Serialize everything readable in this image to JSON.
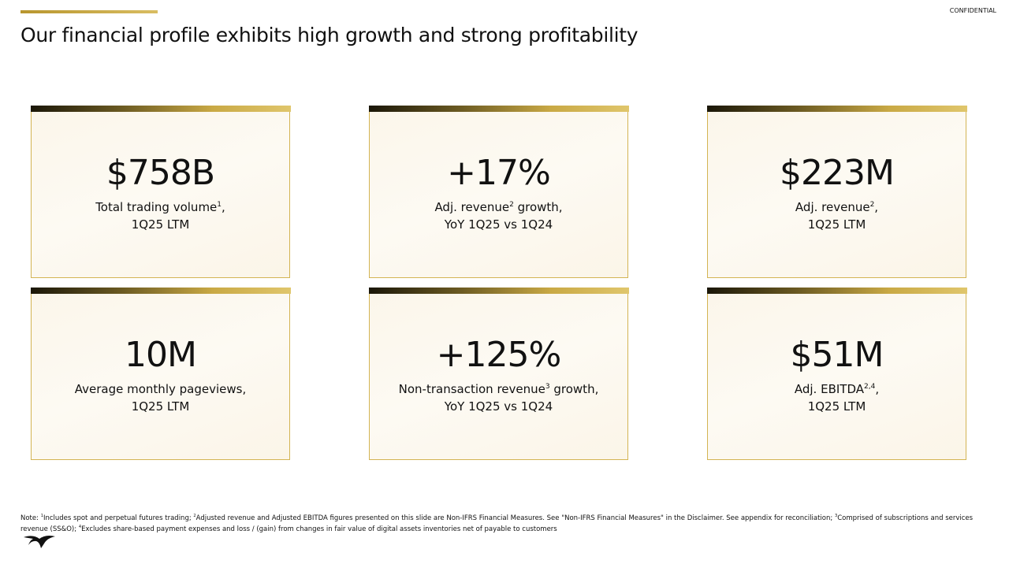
{
  "header": {
    "title": "Our financial profile exhibits high growth and strong profitability",
    "confidential": "CONFIDENTIAL"
  },
  "cards": [
    {
      "value": "$758B",
      "lines": [
        {
          "text": "Total trading volume",
          "sup": "1",
          "after": ","
        },
        {
          "text": "1Q25 LTM"
        }
      ]
    },
    {
      "value": "+17%",
      "lines": [
        {
          "text": "Adj. revenue",
          "sup": "2",
          "after": " growth,"
        },
        {
          "text": "YoY 1Q25 vs 1Q24"
        }
      ]
    },
    {
      "value": "$223M",
      "lines": [
        {
          "text": "Adj. revenue",
          "sup": "2",
          "after": ","
        },
        {
          "text": "1Q25 LTM"
        }
      ]
    },
    {
      "value": "10M",
      "lines": [
        {
          "text": "Average monthly pageviews,"
        },
        {
          "text": "1Q25 LTM"
        }
      ]
    },
    {
      "value": "+125%",
      "lines": [
        {
          "text": "Non-transaction revenue",
          "sup": "3",
          "after": " growth,"
        },
        {
          "text": "YoY 1Q25 vs 1Q24"
        }
      ]
    },
    {
      "value": "$51M",
      "lines": [
        {
          "text": "Adj. EBITDA",
          "sup": "2,4",
          "after": ","
        },
        {
          "text": "1Q25 LTM"
        }
      ]
    }
  ],
  "footnote": {
    "lead": "Note: ",
    "notes": [
      {
        "sup": "1",
        "text": "Includes spot and perpetual futures trading; "
      },
      {
        "sup": "2",
        "text": "Adjusted revenue and Adjusted EBITDA figures presented on this slide are Non-IFRS Financial Measures. See \"Non-IFRS Financial Measures\" in the Disclaimer. See appendix for reconciliation; "
      },
      {
        "sup": "3",
        "text": "Comprised of subscriptions and services revenue (SS&O); "
      },
      {
        "sup": "4",
        "text": "Excludes share-based payment expenses and loss / (gain) from changes in fair value of digital assets inventories net of payable to customers"
      }
    ]
  }
}
